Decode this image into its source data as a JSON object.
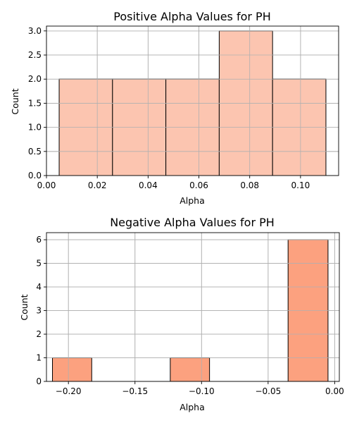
{
  "chart_data": [
    {
      "type": "bar",
      "title": "Positive Alpha Values for PH",
      "xlabel": "Alpha",
      "ylabel": "Count",
      "bar_color": "#fcc5b0",
      "grid": true,
      "xlim": [
        0.0,
        0.115
      ],
      "ylim": [
        0.0,
        3.1
      ],
      "xticks": [
        0.0,
        0.02,
        0.04,
        0.06,
        0.08,
        0.1
      ],
      "xtick_labels": [
        "0.00",
        "0.02",
        "0.04",
        "0.06",
        "0.08",
        "0.10"
      ],
      "yticks": [
        0.0,
        0.5,
        1.0,
        1.5,
        2.0,
        2.5,
        3.0
      ],
      "ytick_labels": [
        "0.0",
        "0.5",
        "1.0",
        "1.5",
        "2.0",
        "2.5",
        "3.0"
      ],
      "bins": [
        {
          "from": 0.005,
          "to": 0.026,
          "count": 2
        },
        {
          "from": 0.026,
          "to": 0.047,
          "count": 2
        },
        {
          "from": 0.047,
          "to": 0.068,
          "count": 2
        },
        {
          "from": 0.068,
          "to": 0.089,
          "count": 3
        },
        {
          "from": 0.089,
          "to": 0.11,
          "count": 2
        }
      ]
    },
    {
      "type": "bar",
      "title": "Negative Alpha Values for PH",
      "xlabel": "Alpha",
      "ylabel": "Count",
      "bar_color": "#fca17f",
      "grid": true,
      "xlim": [
        -0.2165,
        0.0035
      ],
      "ylim": [
        0.0,
        6.3
      ],
      "xticks": [
        -0.2,
        -0.15,
        -0.1,
        -0.05,
        0.0
      ],
      "xtick_labels": [
        "−0.20",
        "−0.15",
        "−0.10",
        "−0.05",
        "0.00"
      ],
      "yticks": [
        0,
        1,
        2,
        3,
        4,
        5,
        6
      ],
      "ytick_labels": [
        "0",
        "1",
        "2",
        "3",
        "4",
        "5",
        "6"
      ],
      "bins": [
        {
          "from": -0.212,
          "to": -0.1825,
          "count": 1
        },
        {
          "from": -0.1825,
          "to": -0.153,
          "count": 0
        },
        {
          "from": -0.153,
          "to": -0.1235,
          "count": 0
        },
        {
          "from": -0.1235,
          "to": -0.094,
          "count": 1
        },
        {
          "from": -0.094,
          "to": -0.0645,
          "count": 0
        },
        {
          "from": -0.0645,
          "to": -0.035,
          "count": 0
        },
        {
          "from": -0.035,
          "to": -0.005,
          "count": 6
        }
      ]
    }
  ]
}
